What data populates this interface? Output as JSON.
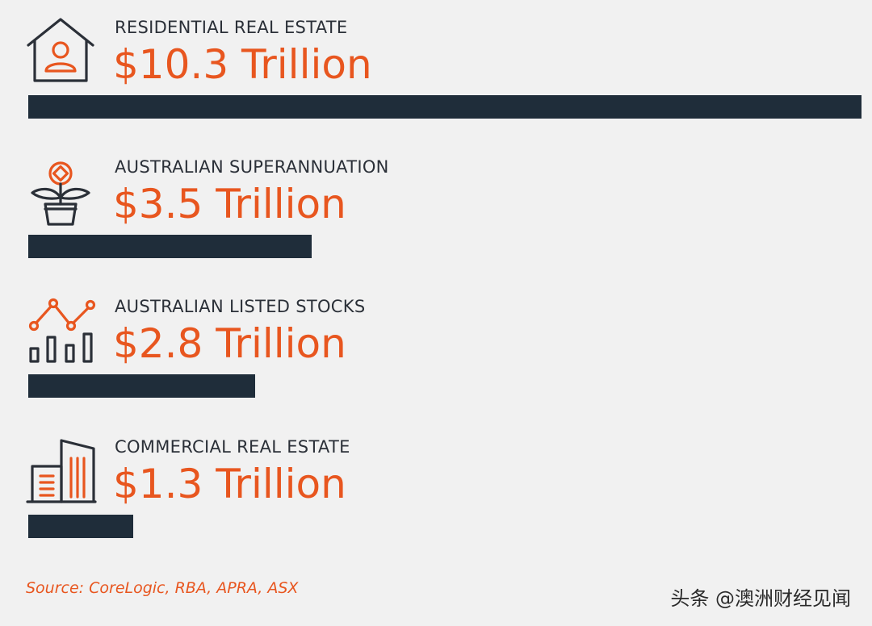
{
  "chart_data": {
    "type": "bar",
    "orientation": "horizontal",
    "categories": [
      "RESIDENTIAL REAL ESTATE",
      "AUSTRALIAN SUPERANNUATION",
      "AUSTRALIAN LISTED STOCKS",
      "COMMERCIAL REAL ESTATE"
    ],
    "values": [
      10.3,
      3.5,
      2.8,
      1.3
    ],
    "value_labels": [
      "$10.3 Trillion",
      "$3.5 Trillion",
      "$2.8 Trillion",
      "$1.3 Trillion"
    ],
    "icons": [
      "house-person-icon",
      "plant-coin-icon",
      "line-bar-chart-icon",
      "buildings-icon"
    ],
    "xlim": [
      0,
      10.3
    ],
    "grid": false,
    "colors": {
      "bar": "#1f2d3a",
      "value": "#e8561f",
      "label": "#2b3038",
      "background": "#f1f1f1"
    }
  },
  "source": "Source: CoreLogic, RBA, APRA, ASX",
  "watermark": "头条 @澳洲财经见闻"
}
